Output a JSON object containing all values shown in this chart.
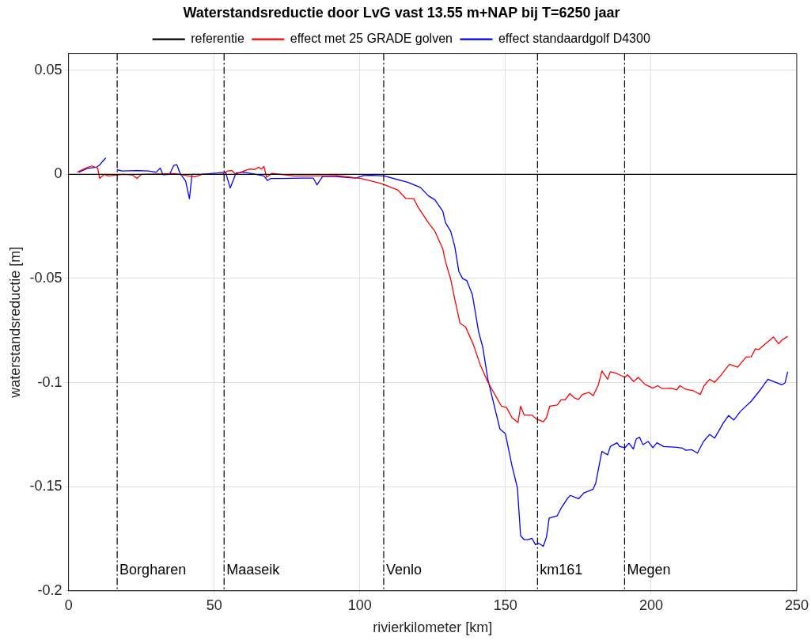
{
  "chart_data": {
    "type": "line",
    "title": "Waterstandsreductie door LvG vast 13.55 m+NAP bij T=6250 jaar",
    "xlabel": "rivierkilometer [km]",
    "ylabel": "waterstandsreductie [m]",
    "xlim": [
      0,
      250
    ],
    "xticks": [
      0,
      50,
      100,
      150,
      200,
      250
    ],
    "ylim": [
      -0.2,
      0.058
    ],
    "yticks": [
      -0.2,
      -0.15,
      -0.1,
      -0.05,
      0,
      0.05
    ],
    "grid": true,
    "legend": "top",
    "marker": "none",
    "line_style": "solid",
    "series": [
      {
        "name": "referentie",
        "color": "#000000",
        "x": [
          0,
          250
        ],
        "values": [
          0,
          0
        ]
      },
      {
        "name": "effect met 25 GRADE golven",
        "color": "#ff0000",
        "x": [
          3,
          6,
          8,
          10,
          10.7,
          12.3,
          13.7,
          18.8,
          21.9,
          23.5,
          25.1,
          36.5,
          39.2,
          43.3,
          45.9,
          52.9,
          54.6,
          56.1,
          57.3,
          60.2,
          62.1,
          63.9,
          65.2,
          66.2,
          67.1,
          68,
          69.8,
          77.6,
          89.3,
          92.2,
          100.4,
          107.5,
          113,
          115.7,
          118.5,
          119.8,
          123.5,
          125.8,
          128.5,
          129.4,
          131.2,
          132.6,
          134.4,
          136.3,
          139,
          141.3,
          144,
          148.6,
          150.4,
          152.2,
          154.3,
          155.2,
          156.4,
          159.1,
          160.5,
          163,
          164.1,
          165.2,
          167.8,
          169.1,
          170.5,
          172.1,
          173.7,
          175.1,
          176.4,
          178.7,
          180.1,
          181.9,
          183.1,
          185.1,
          186,
          188.3,
          191,
          191.9,
          194,
          195.6,
          197.9,
          200.6,
          202.3,
          203.8,
          207,
          208.8,
          209.9,
          212,
          214.3,
          216.9,
          218.1,
          220.1,
          221.8,
          223.9,
          226.9,
          229.7,
          232.6,
          234.4,
          235.8,
          236.9,
          239.9,
          242,
          243.8,
          244.9,
          246.9
        ],
        "values": [
          0.001,
          0.003,
          0.004,
          0.003,
          -0.002,
          0,
          -0.0008,
          0,
          -0.0003,
          -0.002,
          0,
          0.0003,
          -0.0003,
          -0.0013,
          0,
          0,
          0.0016,
          0.0018,
          0,
          0.0016,
          0.0025,
          0.0023,
          0.0034,
          0.0025,
          0.0037,
          -0.0014,
          0.0004,
          -0.0008,
          -0.0007,
          -0.0006,
          -0.002,
          -0.0045,
          -0.0075,
          -0.0115,
          -0.0117,
          -0.0153,
          -0.0232,
          -0.0274,
          -0.0359,
          -0.0419,
          -0.0504,
          -0.06,
          -0.0715,
          -0.0733,
          -0.0818,
          -0.0914,
          -0.0999,
          -0.1113,
          -0.112,
          -0.1168,
          -0.1192,
          -0.1113,
          -0.1156,
          -0.1156,
          -0.1174,
          -0.1188,
          -0.1168,
          -0.1113,
          -0.1108,
          -0.1083,
          -0.1083,
          -0.1053,
          -0.1074,
          -0.1081,
          -0.1057,
          -0.1047,
          -0.1063,
          -0.1011,
          -0.0944,
          -0.0984,
          -0.0948,
          -0.0957,
          -0.0975,
          -0.0963,
          -0.0995,
          -0.0975,
          -0.1009,
          -0.1027,
          -0.1015,
          -0.1029,
          -0.1027,
          -0.1035,
          -0.1015,
          -0.1033,
          -0.1038,
          -0.1057,
          -0.1017,
          -0.0984,
          -0.0999,
          -0.0966,
          -0.0912,
          -0.0926,
          -0.0878,
          -0.0876,
          -0.0838,
          -0.0842,
          -0.0806,
          -0.0781,
          -0.0814,
          -0.0796,
          -0.0778
        ]
      },
      {
        "name": "effect standaardgolf D4300",
        "color": "#0000ff",
        "x": [
          3.6,
          6.4,
          9.6,
          10.8,
          11.7,
          12.8,
          14.5,
          16.6,
          18.3,
          23.7,
          27.4,
          30.1,
          31.5,
          32.4,
          34.7,
          36.1,
          37.2,
          38.3,
          40.2,
          41.5,
          42.4,
          45.6,
          51.1,
          53.9,
          55.5,
          57.5,
          60.2,
          63.9,
          67.1,
          68.3,
          69.4,
          73,
          80.3,
          84,
          85.3,
          87.2,
          91.3,
          98.6,
          101.3,
          104,
          108.4,
          116.6,
          120.8,
          123.5,
          125.8,
          128.5,
          129.4,
          131.2,
          132.6,
          134,
          135.3,
          136.7,
          138.6,
          140.8,
          142.2,
          144,
          146.3,
          148.1,
          150,
          152.2,
          154.1,
          155.2,
          156.4,
          157.7,
          159.1,
          160.3,
          161.4,
          163,
          164.1,
          165,
          167.8,
          169.1,
          171.4,
          172.3,
          175.1,
          176.9,
          180.1,
          181,
          183.1,
          185.1,
          186,
          188.3,
          189.2,
          191,
          192.4,
          193.9,
          194.9,
          196,
          197.2,
          199,
          200.6,
          202,
          204.3,
          208.8,
          210.7,
          212,
          213.9,
          215.9,
          218,
          220.1,
          221.8,
          224.8,
          226.6,
          228.4,
          230.7,
          234.4,
          237.6,
          240.1,
          244.9,
          246,
          246.9
        ],
        "values": [
          0.001,
          0.0028,
          0.0034,
          0.0046,
          0.0062,
          0.0079,
          null,
          0.0022,
          0.0016,
          0.0018,
          0.0016,
          0.001,
          0.003,
          -0.0002,
          0,
          0.0042,
          0.0046,
          0.0004,
          -0.0033,
          -0.0117,
          0,
          0,
          0.0006,
          0.001,
          -0.0066,
          0.0006,
          0.001,
          0.0001,
          -0.0008,
          -0.003,
          -0.002,
          -0.002,
          -0.0018,
          -0.0018,
          -0.0051,
          -0.0011,
          -0.0011,
          -0.0018,
          -0.0006,
          -0.0005,
          -0.0008,
          -0.0039,
          -0.0063,
          -0.0103,
          -0.0123,
          -0.0178,
          -0.0232,
          -0.0274,
          -0.0347,
          -0.0467,
          -0.0501,
          -0.051,
          -0.0576,
          -0.0757,
          -0.083,
          -0.0987,
          -0.112,
          -0.1223,
          -0.1246,
          -0.1397,
          -0.1506,
          -0.1736,
          -0.1754,
          -0.1754,
          -0.1748,
          -0.1778,
          -0.1772,
          -0.1786,
          -0.1741,
          -0.1651,
          -0.1639,
          -0.1603,
          -0.1554,
          -0.1542,
          -0.1558,
          -0.153,
          -0.1512,
          -0.1482,
          -0.1331,
          -0.1347,
          -0.1307,
          -0.1289,
          -0.1307,
          -0.1313,
          -0.1291,
          -0.1319,
          -0.1271,
          -0.1262,
          -0.1298,
          -0.1283,
          -0.1313,
          -0.1289,
          -0.1307,
          -0.1311,
          -0.1315,
          -0.1325,
          -0.1322,
          -0.1339,
          -0.1283,
          -0.1249,
          -0.1267,
          -0.1194,
          -0.1158,
          -0.118,
          -0.1138,
          -0.1089,
          -0.1033,
          -0.0984,
          -0.1011,
          -0.1001,
          -0.0948
        ]
      }
    ],
    "ref_lines": [
      {
        "axis": "x",
        "value": 16.7,
        "label": "Borgharen",
        "color": "#000000",
        "line_style": "dashed"
      },
      {
        "axis": "x",
        "value": 53.4,
        "label": "Maaseik",
        "color": "#000000",
        "line_style": "dashed"
      },
      {
        "axis": "x",
        "value": 108.2,
        "label": "Venlo",
        "color": "#000000",
        "line_style": "dashed"
      },
      {
        "axis": "x",
        "value": 161,
        "label": "km161",
        "color": "#000000",
        "line_style": "dashed"
      },
      {
        "axis": "x",
        "value": 190.9,
        "label": "Megen",
        "color": "#000000",
        "line_style": "dashed"
      }
    ]
  }
}
